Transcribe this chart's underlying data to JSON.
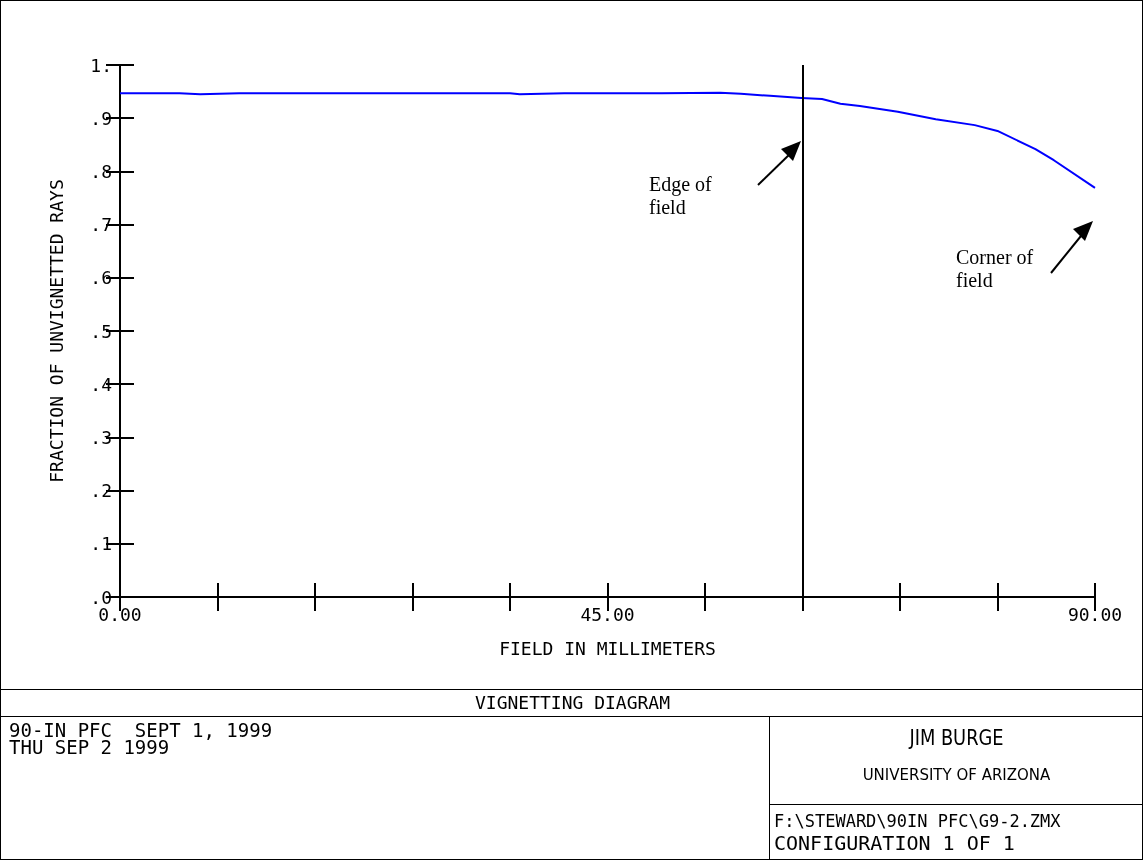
{
  "chart_data": {
    "type": "line",
    "title": "VIGNETTING DIAGRAM",
    "xlabel": "FIELD IN MILLIMETERS",
    "ylabel": "FRACTION OF UNVIGNETTED RAYS",
    "x": [
      0,
      5.5,
      7.4,
      11,
      19,
      30,
      36,
      36.9,
      41,
      50,
      55.4,
      57.3,
      60,
      62.9,
      64.8,
      66.5,
      68.3,
      71.8,
      75.3,
      78.9,
      81,
      84.5,
      86.2,
      90
    ],
    "series": [
      {
        "color": "#0000ff",
        "values": [
          0.947,
          0.947,
          0.945,
          0.947,
          0.947,
          0.947,
          0.947,
          0.945,
          0.947,
          0.947,
          0.948,
          0.946,
          0.942,
          0.938,
          0.936,
          0.927,
          0.923,
          0.912,
          0.898,
          0.887,
          0.876,
          0.842,
          0.821,
          0.769
        ]
      }
    ],
    "xlim": [
      0,
      90
    ],
    "xticks": [
      {
        "value": 0,
        "label": "0.00"
      },
      {
        "value": 9,
        "label": null
      },
      {
        "value": 18,
        "label": null
      },
      {
        "value": 27,
        "label": null
      },
      {
        "value": 36,
        "label": null
      },
      {
        "value": 45,
        "label": "45.00"
      },
      {
        "value": 54,
        "label": null
      },
      {
        "value": 63,
        "label": null
      },
      {
        "value": 72,
        "label": null
      },
      {
        "value": 81,
        "label": null
      },
      {
        "value": 90,
        "label": "90.00"
      }
    ],
    "ylim": [
      0,
      1
    ],
    "yticks": [
      {
        "value": 0,
        "label": ".0"
      },
      {
        "value": 0.1,
        "label": ".1"
      },
      {
        "value": 0.2,
        "label": ".2"
      },
      {
        "value": 0.3,
        "label": ".3"
      },
      {
        "value": 0.4,
        "label": ".4"
      },
      {
        "value": 0.5,
        "label": ".5"
      },
      {
        "value": 0.6,
        "label": ".6"
      },
      {
        "value": 0.7,
        "label": ".7"
      },
      {
        "value": 0.8,
        "label": ".8"
      },
      {
        "value": 0.9,
        "label": ".9"
      },
      {
        "value": 1,
        "label": "1."
      }
    ],
    "ref_lines": [
      {
        "axis": "x",
        "value": 63,
        "color": "#000000"
      }
    ],
    "annotations": [
      "Edge of field",
      "Corner of field",
      "90-IN PFC  SEPT 1, 1999",
      "THU SEP 2 1999",
      "JIM BURGE",
      "UNIVERSITY OF ARIZONA",
      "F:\\STEWARD\\90IN PFC\\G9-2.ZMX",
      "CONFIGURATION 1 OF 1"
    ],
    "grid": false,
    "marker": "none",
    "line_style": "solid"
  }
}
